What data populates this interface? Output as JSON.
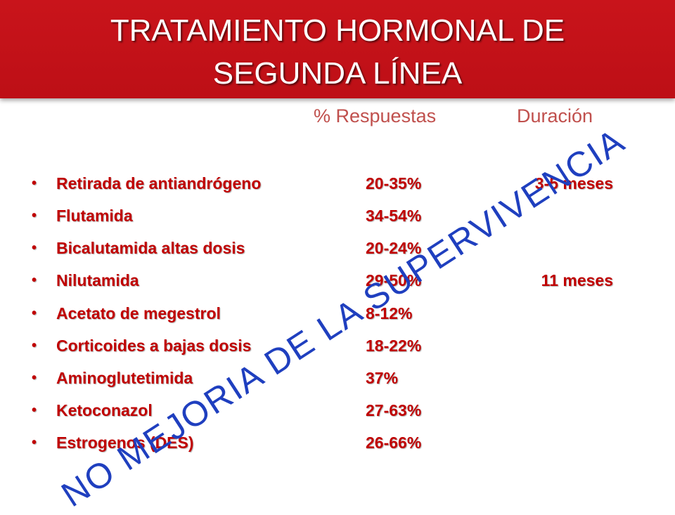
{
  "title": {
    "line1": "TRATAMIENTO HORMONAL DE",
    "line2": "SEGUNDA LÍNEA"
  },
  "headers": {
    "responses": "% Respuestas",
    "duration": "Duración"
  },
  "bullet": "•",
  "rows": [
    {
      "name": "Retirada de antiandrógeno",
      "pct": "20-35%",
      "duration": "3-5 meses"
    },
    {
      "name": "Flutamida",
      "pct": "34-54%",
      "duration": ""
    },
    {
      "name": "Bicalutamida altas dosis",
      "pct": "20-24%",
      "duration": ""
    },
    {
      "name": "Nilutamida",
      "pct": "29-50%",
      "duration": "11 meses"
    },
    {
      "name": "Acetato de megestrol",
      "pct": "8-12%",
      "duration": ""
    },
    {
      "name": "Corticoides a bajas dosis",
      "pct": "18-22%",
      "duration": ""
    },
    {
      "name": "Aminoglutetimida",
      "pct": "37%",
      "duration": ""
    },
    {
      "name": "Ketoconazol",
      "pct": "27-63%",
      "duration": ""
    },
    {
      "name": "Estrogenos (DES)",
      "pct": "26-66%",
      "duration": ""
    }
  ],
  "watermark": "NO MEJORIA DE LA SUPERVIVENCIA",
  "colors": {
    "title_bg": "#c9141b",
    "row_text": "#c00000",
    "header_text": "#c0504d",
    "watermark": "#1f3fbf"
  }
}
